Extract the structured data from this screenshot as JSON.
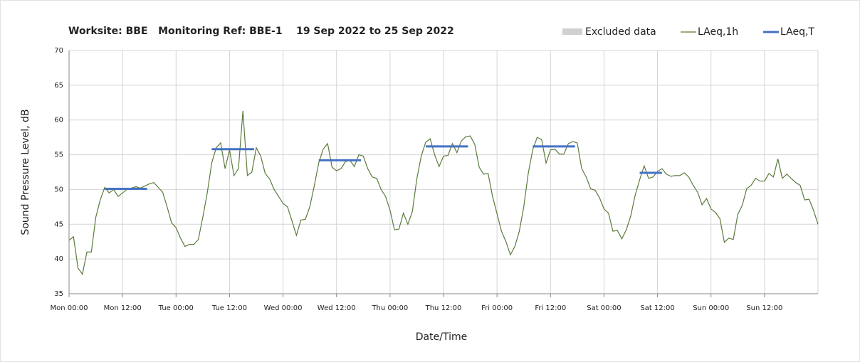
{
  "chart_data": {
    "type": "line",
    "title": "Worksite: BBE   Monitoring Ref: BBE-1    19 Sep 2022 to 25 Sep 2022",
    "x_label": "Date/Time",
    "y_label": "Sound Pressure Level, dB",
    "legend_extra": {
      "name": "Excluded data",
      "color": "#d0d0d0"
    },
    "xlim": [
      0,
      168
    ],
    "ylim": [
      35,
      70
    ],
    "xticks": [
      {
        "value": 0,
        "label": "Mon 00:00"
      },
      {
        "value": 12,
        "label": "Mon 12:00"
      },
      {
        "value": 24,
        "label": "Tue 00:00"
      },
      {
        "value": 36,
        "label": "Tue 12:00"
      },
      {
        "value": 48,
        "label": "Wed 00:00"
      },
      {
        "value": 60,
        "label": "Wed 12:00"
      },
      {
        "value": 72,
        "label": "Thu 00:00"
      },
      {
        "value": 84,
        "label": "Thu 12:00"
      },
      {
        "value": 96,
        "label": "Fri 00:00"
      },
      {
        "value": 108,
        "label": "Fri 12:00"
      },
      {
        "value": 120,
        "label": "Sat 00:00"
      },
      {
        "value": 132,
        "label": "Sat 12:00"
      },
      {
        "value": 144,
        "label": "Sun 00:00"
      },
      {
        "value": 156,
        "label": "Sun 12:00"
      }
    ],
    "yticks": [
      35,
      40,
      45,
      50,
      55,
      60,
      65,
      70
    ],
    "grid": true,
    "series": [
      {
        "name": "LAeq,1h",
        "color": "#5b7b3c",
        "width": 1.2,
        "x": [
          0,
          1,
          2,
          3,
          4,
          5,
          6,
          7,
          8,
          9,
          10,
          11,
          12,
          13,
          14,
          15,
          16,
          17,
          18,
          19,
          20,
          21,
          22,
          23,
          24,
          25,
          26,
          27,
          28,
          29,
          30,
          31,
          32,
          33,
          34,
          35,
          36,
          37,
          38,
          39,
          40,
          41,
          42,
          43,
          44,
          45,
          46,
          47,
          48,
          49,
          50,
          51,
          52,
          53,
          54,
          55,
          56,
          57,
          58,
          59,
          60,
          61,
          62,
          63,
          64,
          65,
          66,
          67,
          68,
          69,
          70,
          71,
          72,
          73,
          74,
          75,
          76,
          77,
          78,
          79,
          80,
          81,
          82,
          83,
          84,
          85,
          86,
          87,
          88,
          89,
          90,
          91,
          92,
          93,
          94,
          95,
          96,
          97,
          98,
          99,
          100,
          101,
          102,
          103,
          104,
          105,
          106,
          107,
          108,
          109,
          110,
          111,
          112,
          113,
          114,
          115,
          116,
          117,
          118,
          119,
          120,
          121,
          122,
          123,
          124,
          125,
          126,
          127,
          128,
          129,
          130,
          131,
          132,
          133,
          134,
          135,
          136,
          137,
          138,
          139,
          140,
          141,
          142,
          143,
          144,
          145,
          146,
          147,
          148,
          149,
          150,
          151,
          152,
          153,
          154,
          155,
          156,
          157,
          158,
          159,
          160,
          161,
          162,
          163,
          164,
          165,
          166,
          167,
          168
        ],
        "values": [
          42.7,
          43.2,
          38.7,
          37.8,
          41,
          41,
          46,
          48.5,
          50.3,
          49.5,
          50,
          49,
          49.5,
          50,
          50.2,
          50.4,
          50.2,
          50.5,
          50.8,
          51,
          50.3,
          49.6,
          47.5,
          45.2,
          44.5,
          43,
          41.8,
          42.1,
          42.1,
          42.8,
          46,
          49.5,
          53.8,
          56,
          56.7,
          53,
          55.7,
          52,
          53,
          61.3,
          52,
          52.5,
          56,
          54.8,
          52.3,
          51.5,
          50,
          49,
          48,
          47.5,
          45.5,
          43.4,
          45.6,
          45.7,
          47.5,
          50.5,
          53.8,
          55.8,
          56.6,
          53.2,
          52.7,
          53,
          54,
          54.2,
          53.3,
          55,
          54.8,
          53,
          51.8,
          51.6,
          50,
          49,
          47,
          44.2,
          44.3,
          46.6,
          45,
          46.8,
          51.5,
          54.8,
          56.8,
          57.3,
          55,
          53.3,
          54.8,
          54.9,
          56.6,
          55.3,
          57,
          57.6,
          57.7,
          56.5,
          53.2,
          52.2,
          52.3,
          49,
          46.5,
          44,
          42.5,
          40.6,
          41.8,
          44,
          47.5,
          52.3,
          55.7,
          57.5,
          57.2,
          53.8,
          55.7,
          55.8,
          55.1,
          55.1,
          56.6,
          56.9,
          56.7,
          53,
          51.8,
          50.1,
          49.9,
          48.8,
          47.2,
          46.6,
          44,
          44.1,
          42.9,
          44.2,
          46.2,
          49.2,
          51.4,
          53.4,
          51.6,
          51.8,
          52.6,
          53,
          52.2,
          51.9,
          52,
          52,
          52.4,
          51.8,
          50.6,
          49.6,
          47.8,
          48.7,
          47.2,
          46.7,
          45.8,
          42.4,
          43,
          42.8,
          46.4,
          47.7,
          50.1,
          50.6,
          51.6,
          51.2,
          51.2,
          52.3,
          51.8,
          54.4,
          51.6,
          52.2,
          51.6,
          51,
          50.6,
          48.5,
          48.6,
          47,
          45
        ]
      },
      {
        "name": "LAeq,T",
        "color": "#4472c4",
        "width": 3,
        "x": [
          8,
          17.5,
          null,
          32,
          41.5,
          null,
          56,
          65.5,
          null,
          80,
          89.5,
          null,
          104,
          113.5,
          null,
          128,
          133
        ],
        "values": [
          50.1,
          50.1,
          null,
          55.8,
          55.8,
          null,
          54.2,
          54.2,
          null,
          56.2,
          56.2,
          null,
          56.2,
          56.2,
          null,
          52.4,
          52.4
        ]
      }
    ]
  }
}
